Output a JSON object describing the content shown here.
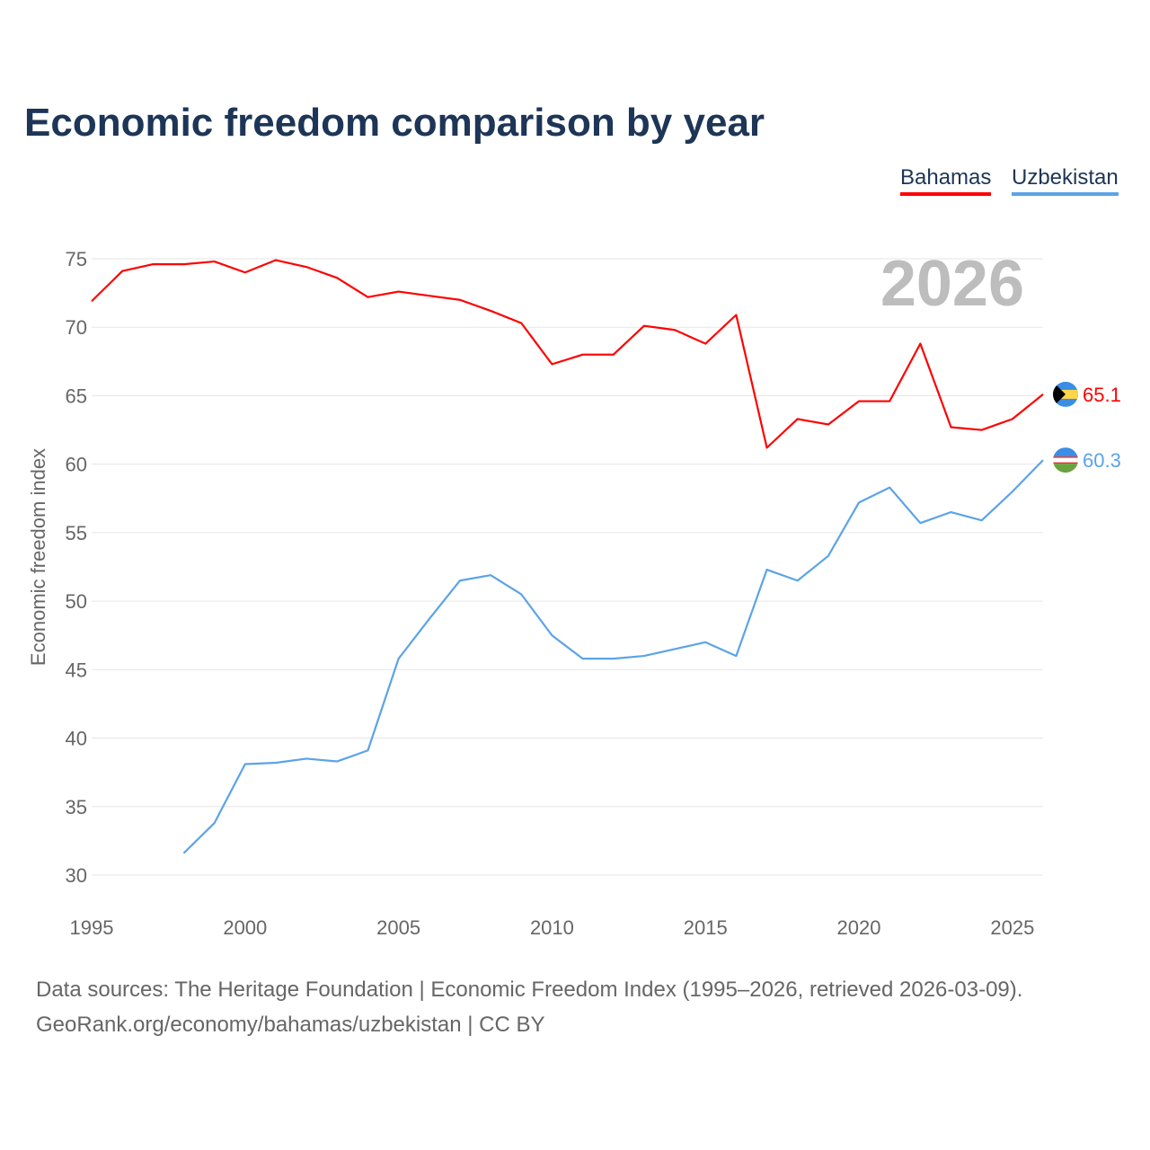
{
  "title": "Economic freedom comparison by year",
  "footer": {
    "line1": "Data sources: The Heritage Foundation | Economic Freedom Index (1995–2026, retrieved 2026-03-09).",
    "line2": "GeoRank.org/economy/bahamas/uzbekistan | CC BY"
  },
  "chart_data": {
    "type": "line",
    "title": "Economic freedom comparison by year",
    "xlabel": "",
    "ylabel": "Economic freedom index",
    "year_label": "2026",
    "xlim": [
      1995,
      2026
    ],
    "ylim": [
      30,
      75
    ],
    "xticks": [
      "1995",
      "2000",
      "2005",
      "2010",
      "2015",
      "2020",
      "2025"
    ],
    "yticks": [
      "30",
      "35",
      "40",
      "45",
      "50",
      "55",
      "60",
      "65",
      "70",
      "75"
    ],
    "grid": true,
    "legend_position": "top-right",
    "series": [
      {
        "name": "Bahamas",
        "color": "#ff0000",
        "end_label": "65.1",
        "flag": "bahamas-flag",
        "x": [
          1995,
          1996,
          1997,
          1998,
          1999,
          2000,
          2001,
          2002,
          2003,
          2004,
          2005,
          2006,
          2007,
          2008,
          2009,
          2010,
          2011,
          2012,
          2013,
          2014,
          2015,
          2016,
          2017,
          2018,
          2019,
          2020,
          2021,
          2022,
          2023,
          2024,
          2025,
          2026
        ],
        "values": [
          71.9,
          74.1,
          74.6,
          74.6,
          74.8,
          74.0,
          74.9,
          74.4,
          73.6,
          72.2,
          72.6,
          72.3,
          72.0,
          71.2,
          70.3,
          67.3,
          68.0,
          68.0,
          70.1,
          69.8,
          68.8,
          70.9,
          61.2,
          63.3,
          62.9,
          64.6,
          64.6,
          68.8,
          62.7,
          62.5,
          63.3,
          65.1
        ]
      },
      {
        "name": "Uzbekistan",
        "color": "#5ba3e8",
        "end_label": "60.3",
        "flag": "uzbekistan-flag",
        "x": [
          1998,
          1999,
          2000,
          2001,
          2002,
          2003,
          2004,
          2005,
          2006,
          2007,
          2008,
          2009,
          2010,
          2011,
          2012,
          2013,
          2014,
          2015,
          2016,
          2017,
          2018,
          2019,
          2020,
          2021,
          2022,
          2023,
          2024,
          2025,
          2026
        ],
        "values": [
          31.6,
          33.8,
          38.1,
          38.2,
          38.5,
          38.3,
          39.1,
          45.8,
          48.7,
          51.5,
          51.9,
          50.5,
          47.5,
          45.8,
          45.8,
          46.0,
          46.5,
          47.0,
          46.0,
          52.3,
          51.5,
          53.3,
          57.2,
          58.3,
          55.7,
          56.5,
          55.9,
          58.0,
          60.3
        ]
      }
    ]
  }
}
